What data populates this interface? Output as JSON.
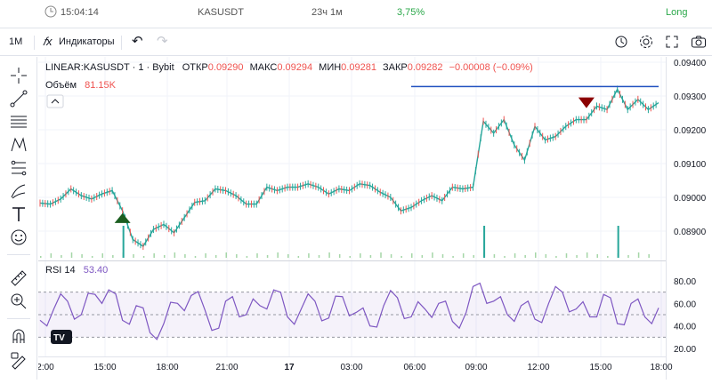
{
  "top": {
    "time": "15:04:14",
    "symbol": "KASUSDT",
    "duration": "23ч 1м",
    "percent": "3,75%",
    "side": "Long",
    "percent_color": "#2ba84a",
    "side_color": "#2ba84a"
  },
  "toolbar": {
    "interval": "1M",
    "indicators_label": "Индикаторы",
    "fx_icon": "fx-icon",
    "undo_icon": "undo-icon",
    "redo_icon": "redo-icon",
    "right_icons": [
      "replay-clock-icon",
      "gear-icon",
      "fullscreen-icon",
      "camera-icon"
    ]
  },
  "left_tools": [
    "crosshair-icon",
    "trendline-icon",
    "fib-icon",
    "pattern-icon",
    "projection-icon",
    "brush-icon",
    "text-icon",
    "emoji-icon",
    "ruler-icon",
    "zoom-in-icon",
    "magnet-icon",
    "lock-pencil-icon"
  ],
  "legend": {
    "title": "LINEAR:KASUSDT · 1 · Bybit",
    "open_label": "ОТКР",
    "open_value": "0.09290",
    "high_label": "МАКС",
    "high_value": "0.09294",
    "low_label": "МИН",
    "low_value": "0.09281",
    "close_label": "ЗАКР",
    "close_value": "0.09282",
    "change": "−0.00008 (−0.09%)",
    "volume_label": "Объём",
    "volume_value": "81.15K",
    "value_color": "#ef5350"
  },
  "rsi": {
    "label": "RSI 14",
    "value": "53.40",
    "color": "#7e57c2"
  },
  "chart_data": {
    "type": "line",
    "price_axis": [
      "0.09400",
      "0.09300",
      "0.09200",
      "0.09100",
      "0.09000",
      "0.08900"
    ],
    "rsi_axis": [
      "80.00",
      "60.00",
      "40.00",
      "20.00"
    ],
    "time_axis": [
      "2:00",
      "15:00",
      "18:00",
      "21:00",
      "17",
      "03:00",
      "06:00",
      "09:00",
      "12:00",
      "15:00",
      "18:00"
    ],
    "price_series": {
      "x": [
        0,
        3,
        6,
        9,
        12,
        15,
        18,
        21,
        24,
        27,
        30,
        33,
        36,
        39,
        42,
        45,
        48,
        51,
        54,
        57,
        60,
        63,
        66,
        69,
        72,
        75,
        78,
        81,
        84,
        87,
        90,
        93,
        96,
        99,
        102,
        105,
        108,
        111,
        114,
        117,
        120,
        123,
        126,
        129,
        132,
        135,
        138,
        141,
        144,
        147,
        150,
        153,
        156,
        159,
        162,
        165,
        168,
        171,
        174,
        177,
        180
      ],
      "y": [
        0.08983,
        0.0898,
        0.08995,
        0.09025,
        0.09005,
        0.08995,
        0.0901,
        0.0902,
        0.0896,
        0.08875,
        0.08855,
        0.08905,
        0.0892,
        0.08895,
        0.0894,
        0.08985,
        0.0899,
        0.09025,
        0.0902,
        0.09005,
        0.0898,
        0.0898,
        0.0903,
        0.0902,
        0.0903,
        0.0903,
        0.0904,
        0.0903,
        0.0901,
        0.09025,
        0.0902,
        0.0904,
        0.09035,
        0.09015,
        0.09,
        0.0896,
        0.0897,
        0.0899,
        0.09005,
        0.0899,
        0.0903,
        0.09025,
        0.0903,
        0.09225,
        0.0919,
        0.0923,
        0.09155,
        0.0911,
        0.0921,
        0.0917,
        0.0918,
        0.0921,
        0.0923,
        0.0923,
        0.0927,
        0.0926,
        0.0932,
        0.0926,
        0.0929,
        0.0926,
        0.0928
      ]
    },
    "markers": [
      {
        "type": "buy",
        "x": 24,
        "y": 0.08945,
        "color": "#1b5e20"
      },
      {
        "type": "sell",
        "x": 159,
        "y": 0.0928,
        "color": "#8b0000"
      }
    ],
    "horizontal_line": {
      "y": 0.09328,
      "x_start": 108,
      "x_end": 180,
      "color": "#1f4fbf"
    },
    "rsi_levels": [
      70,
      50,
      30
    ],
    "rsi_series": {
      "x": [
        0,
        4,
        8,
        12,
        16,
        20,
        24,
        28,
        32,
        36,
        40,
        44,
        48,
        52,
        56,
        60,
        64,
        68,
        72,
        76,
        80,
        84,
        88,
        92,
        96,
        100,
        104,
        108,
        112,
        116,
        120,
        124,
        128,
        132,
        136,
        140,
        144,
        148,
        152,
        156,
        160,
        164,
        168,
        172,
        176,
        180
      ],
      "y": [
        45,
        55,
        62,
        50,
        68,
        72,
        45,
        58,
        34,
        42,
        60,
        67,
        54,
        38,
        66,
        50,
        58,
        72,
        48,
        55,
        62,
        47,
        66,
        52,
        40,
        58,
        65,
        48,
        55,
        60,
        44,
        52,
        78,
        62,
        50,
        58,
        46,
        60,
        70,
        55,
        48,
        68,
        42,
        60,
        48,
        56
      ]
    },
    "volume": {
      "spike_x": [
        24,
        129,
        168
      ]
    },
    "grid": true
  }
}
